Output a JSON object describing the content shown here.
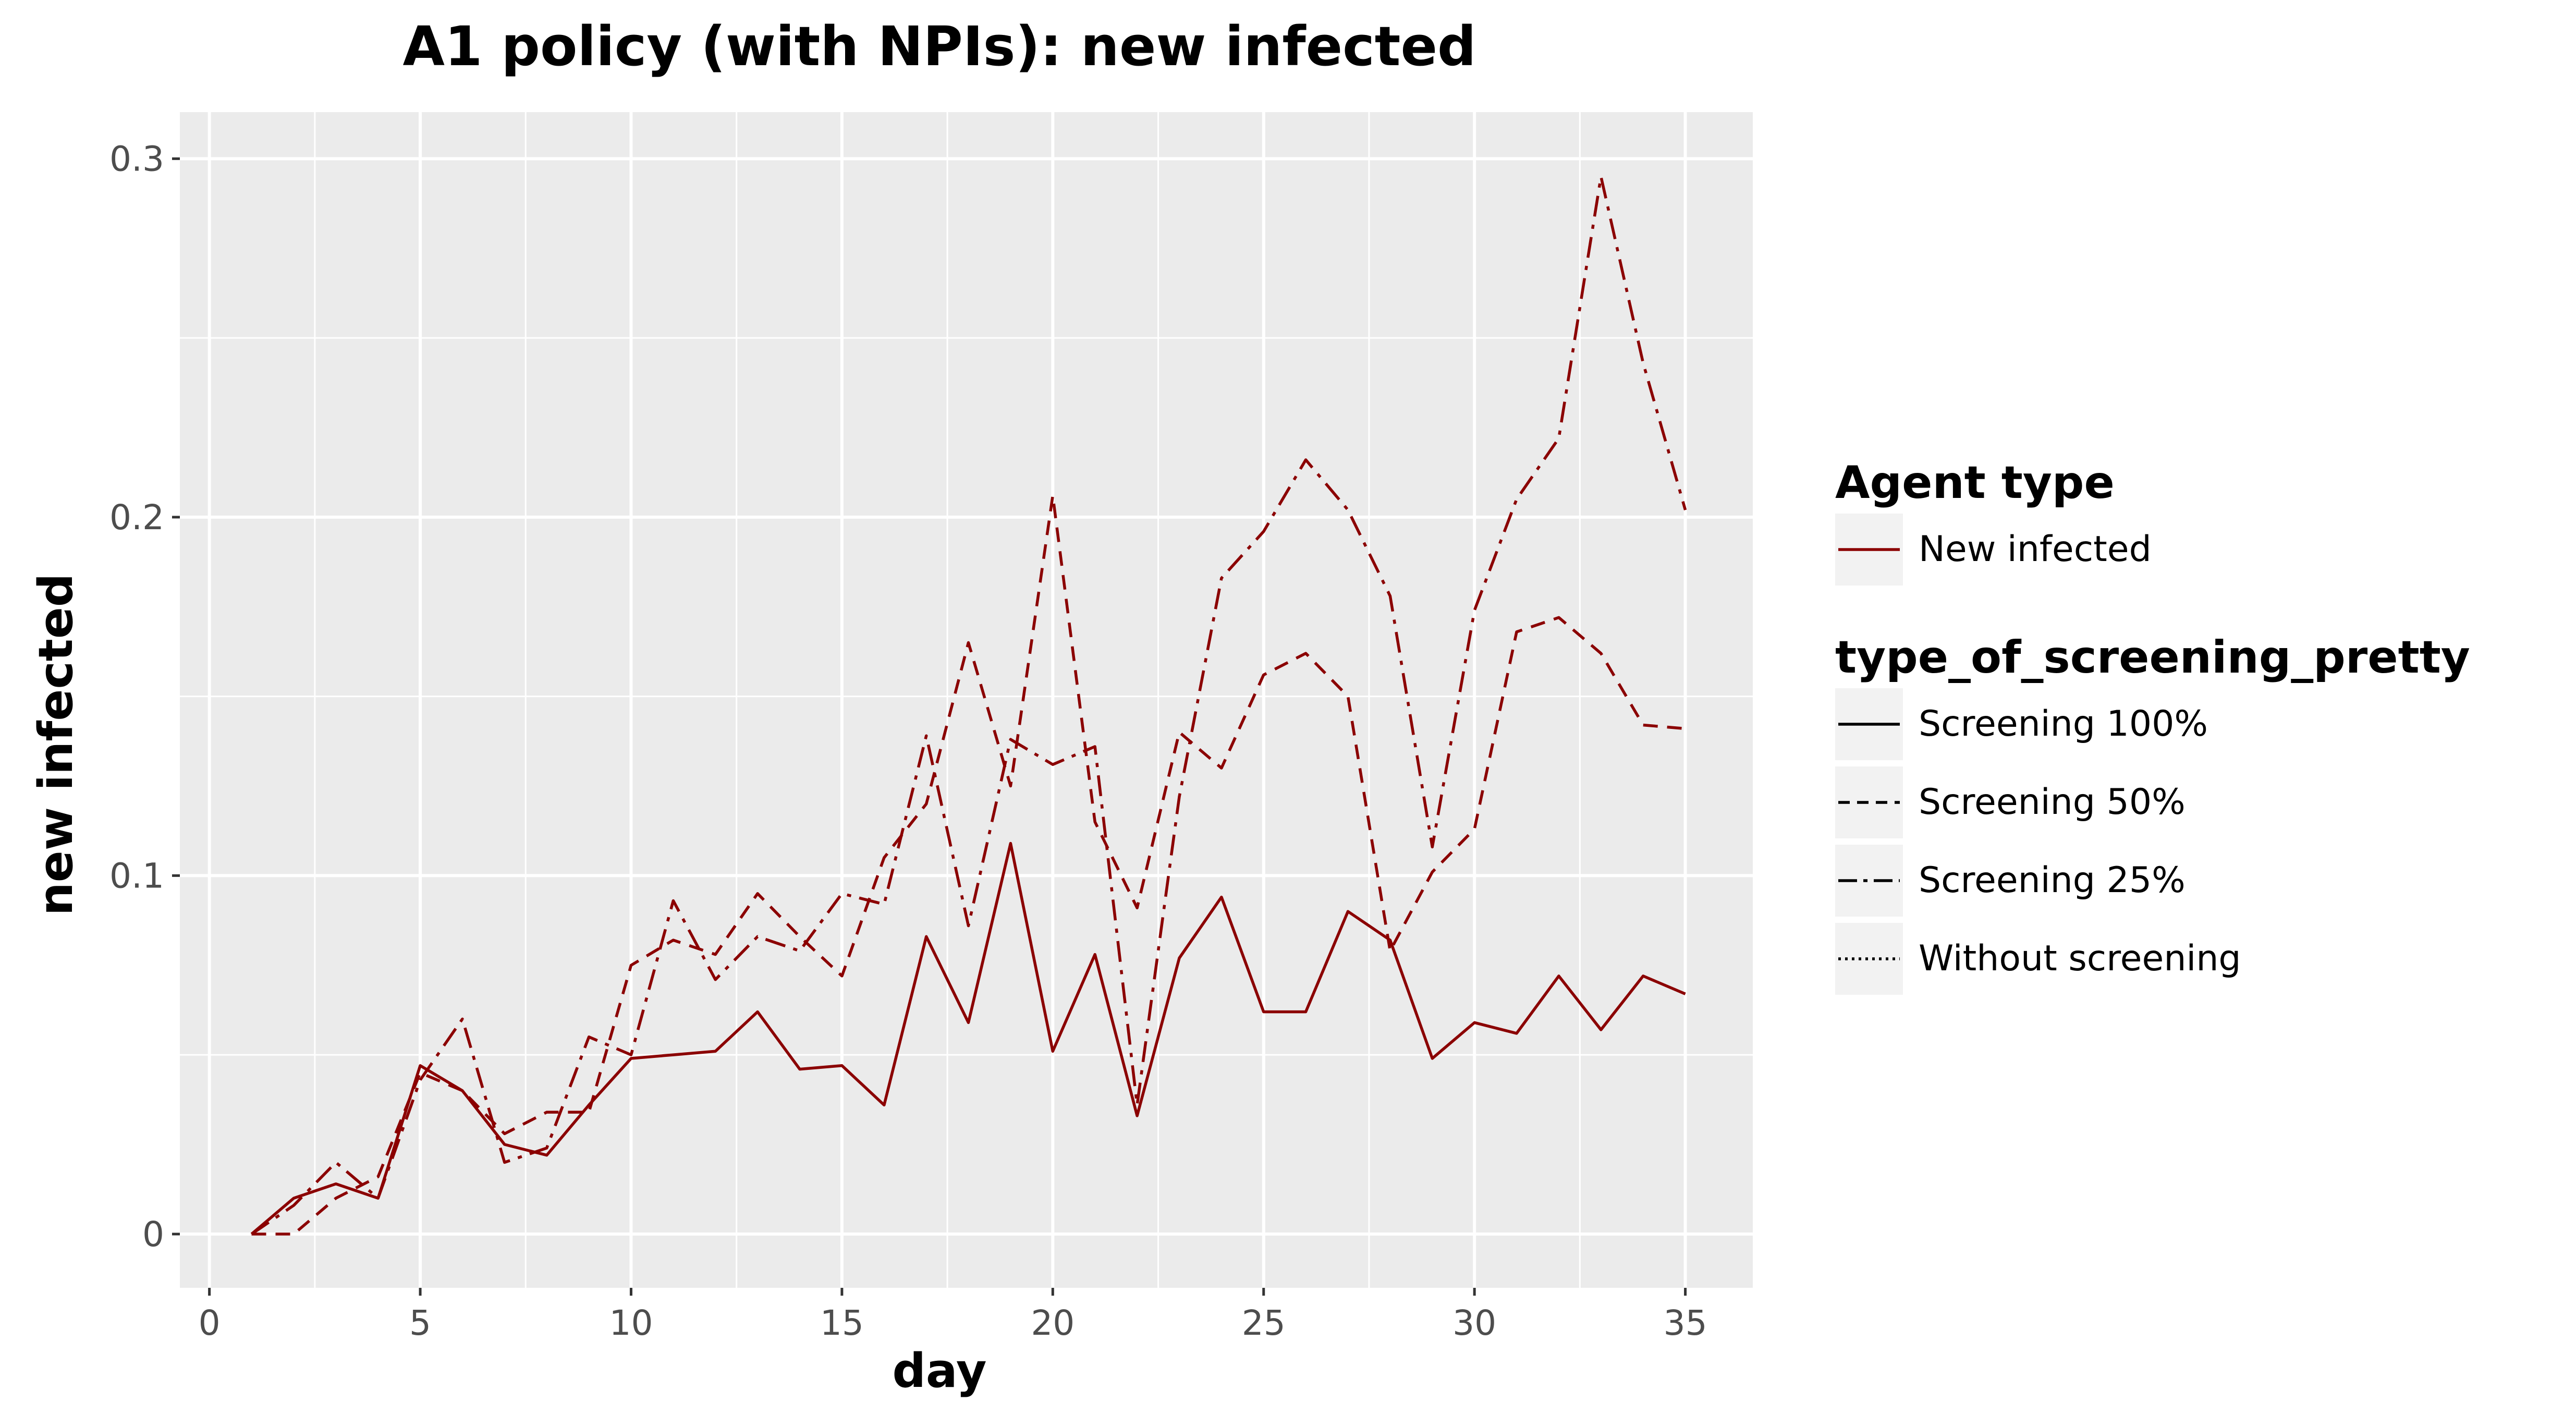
{
  "chart_data": {
    "type": "line",
    "title": "A1 policy (with NPIs): new infected",
    "xlabel": "day",
    "ylabel": "new infected",
    "xlim": [
      -0.7,
      36.6
    ],
    "ylim": [
      -0.015,
      0.313
    ],
    "x_ticks": [
      0,
      5,
      10,
      15,
      20,
      25,
      30,
      35
    ],
    "y_ticks": [
      0,
      0.1,
      0.2,
      0.3
    ],
    "y_tick_labels": [
      "0",
      "0.1",
      "0.2",
      "0.3"
    ],
    "grid": true,
    "panel_background": "#EBEBEB",
    "line_color": "#8B0000",
    "x": [
      1,
      2,
      3,
      4,
      5,
      6,
      7,
      8,
      9,
      10,
      11,
      12,
      13,
      14,
      15,
      16,
      17,
      18,
      19,
      20,
      21,
      22,
      23,
      24,
      25,
      26,
      27,
      28,
      29,
      30,
      31,
      32,
      33,
      34,
      35
    ],
    "series": [
      {
        "name": "Screening 100%",
        "linetype": "solid",
        "values": [
          0.0,
          0.01,
          0.014,
          0.01,
          0.047,
          0.04,
          0.025,
          0.022,
          0.036,
          0.049,
          0.05,
          0.051,
          0.062,
          0.046,
          0.047,
          0.036,
          0.083,
          0.059,
          0.109,
          0.051,
          0.078,
          0.033,
          0.077,
          0.094,
          0.062,
          0.062,
          0.09,
          0.082,
          0.049,
          0.059,
          0.056,
          0.072,
          0.057,
          0.072,
          0.067
        ]
      },
      {
        "name": "Screening 50%",
        "linetype": "dashed",
        "values": [
          0.0,
          0.0,
          0.01,
          0.016,
          0.045,
          0.04,
          0.028,
          0.034,
          0.034,
          0.075,
          0.082,
          0.078,
          0.095,
          0.083,
          0.072,
          0.105,
          0.12,
          0.165,
          0.125,
          0.206,
          0.115,
          0.091,
          0.14,
          0.13,
          0.156,
          0.162,
          0.15,
          0.079,
          0.101,
          0.113,
          0.168,
          0.172,
          0.162,
          0.142,
          0.141
        ]
      },
      {
        "name": "Screening 25%",
        "linetype": "dashdot",
        "values": [
          0.0,
          0.008,
          0.02,
          0.01,
          0.043,
          0.06,
          0.02,
          0.024,
          0.055,
          0.05,
          0.093,
          0.071,
          0.083,
          0.079,
          0.095,
          0.092,
          0.139,
          0.086,
          0.138,
          0.131,
          0.136,
          0.036,
          0.122,
          0.183,
          0.196,
          0.216,
          0.202,
          0.178,
          0.108,
          0.174,
          0.205,
          0.222,
          0.295,
          0.243,
          0.202
        ]
      }
    ],
    "legend": {
      "placement": "right",
      "groups": [
        {
          "title": "Agent type",
          "items": [
            {
              "label": "New infected",
              "linetype": "solid",
              "color": "#8B0000"
            }
          ]
        },
        {
          "title": "type_of_screening_pretty",
          "items": [
            {
              "label": "Screening 100%",
              "linetype": "solid",
              "color": "#000000"
            },
            {
              "label": "Screening 50%",
              "linetype": "dashed",
              "color": "#000000"
            },
            {
              "label": "Screening 25%",
              "linetype": "dashdot",
              "color": "#000000"
            },
            {
              "label": "Without screening",
              "linetype": "dotted",
              "color": "#000000"
            }
          ]
        }
      ]
    }
  }
}
